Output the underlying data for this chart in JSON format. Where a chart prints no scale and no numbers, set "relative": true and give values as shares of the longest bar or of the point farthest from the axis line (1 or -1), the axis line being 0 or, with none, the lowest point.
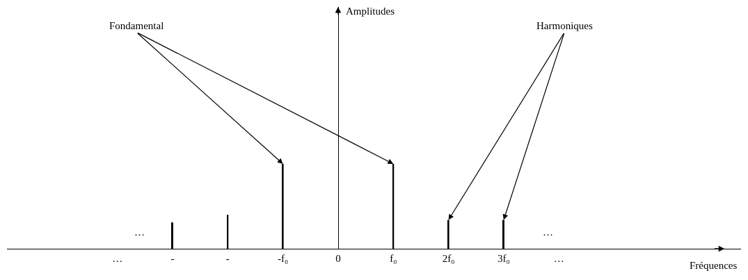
{
  "chart_data": {
    "type": "bar",
    "relative": true,
    "categories": [
      "…",
      "-",
      "-",
      "-f₀",
      "0",
      "f₀",
      "2f₀",
      "3f₀",
      "…"
    ],
    "values": [
      null,
      0.31,
      0.4,
      1,
      null,
      1,
      0.34,
      0.34,
      null
    ],
    "color": "#000000",
    "annotations": [
      "Fondamental",
      "Harmoniques",
      "…",
      "…",
      "Amplitudes",
      "Fréquences"
    ]
  }
}
